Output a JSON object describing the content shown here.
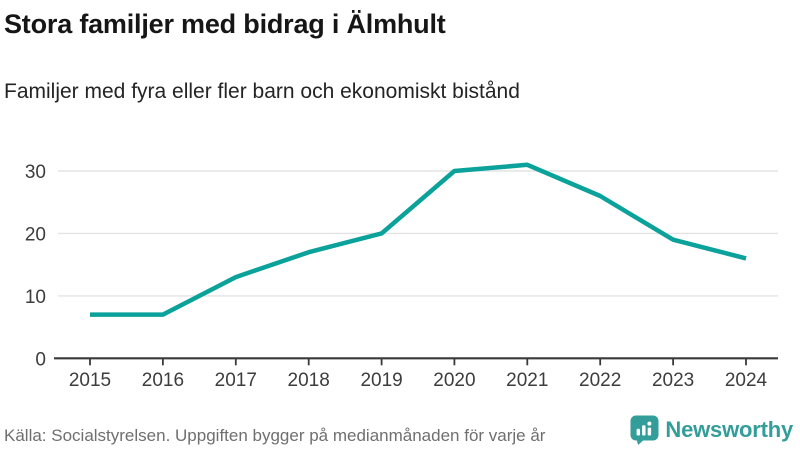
{
  "header": {
    "title": "Stora familjer med bidrag i Älmhult",
    "subtitle": "Familjer med fyra eller fler barn och ekonomiskt bistånd"
  },
  "chart_data": {
    "type": "line",
    "title": "Stora familjer med bidrag i Älmhult",
    "subtitle": "Familjer med fyra eller fler barn och ekonomiskt bistånd",
    "x": [
      2015,
      2016,
      2017,
      2018,
      2019,
      2020,
      2021,
      2022,
      2023,
      2024
    ],
    "series": [
      {
        "name": "Familjer med fyra eller fler barn och ekonomiskt bistånd",
        "color": "#0aa29a",
        "values": [
          7,
          7,
          13,
          17,
          20,
          30,
          31,
          26,
          19,
          16
        ]
      }
    ],
    "ylim": [
      0,
      32
    ],
    "yticks": [
      0,
      10,
      20,
      30
    ],
    "grid": true,
    "legend": false
  },
  "footer": {
    "source": "Källa: Socialstyrelsen. Uppgiften bygger på medianmånaden för varje år",
    "logo_text": "Newsworthy"
  },
  "colors": {
    "line": "#0aa29a",
    "logo_teal": "#339e99",
    "grid": "#e3e3e3",
    "axis": "#3a3a3a",
    "tick_label": "#3d3d3d"
  }
}
